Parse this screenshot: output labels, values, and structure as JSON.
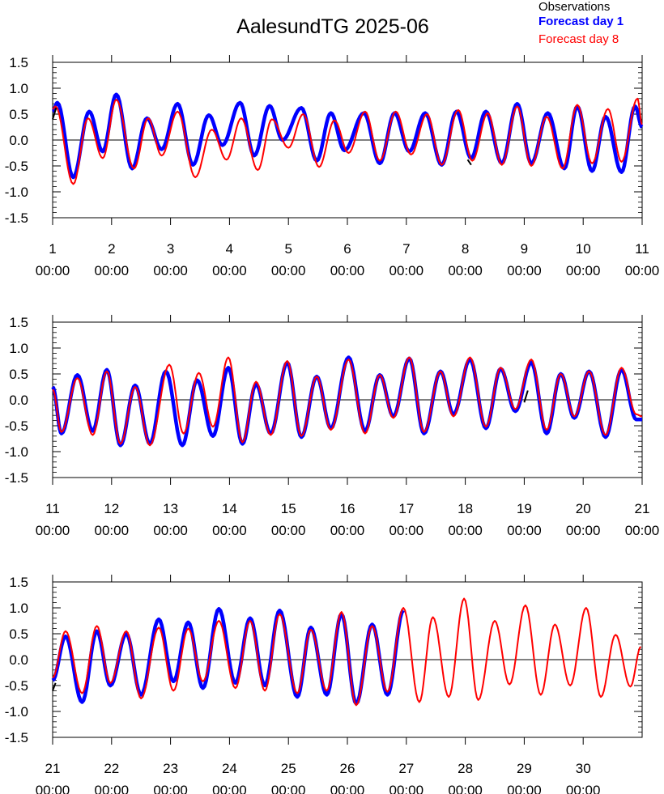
{
  "title": "AalesundTG 2025-06",
  "legend": [
    {
      "label": "Observations",
      "color": "#000000",
      "bold": false
    },
    {
      "label": "Forecast day 1",
      "color": "#0000ff",
      "bold": true
    },
    {
      "label": "Forecast day 8",
      "color": "#ff0000",
      "bold": false
    }
  ],
  "chart_data": {
    "type": "line",
    "title": "AalesundTG 2025-06",
    "units": "days of June 2025 (x), sea level (y)",
    "ylim": [
      -1.5,
      1.5
    ],
    "yticks": [
      "1.5",
      "1.0",
      "0.5",
      "0.0",
      "-0.5",
      "-1.0",
      "-1.5"
    ],
    "grid": false,
    "legend_position": "top-right",
    "series_style": {
      "Observations": {
        "color": "#000000"
      },
      "Forecast day 1": {
        "color": "#0000ff"
      },
      "Forecast day 8": {
        "color": "#ff0000"
      }
    },
    "panels": [
      {
        "xrange": [
          1,
          11
        ],
        "xtick_days": [
          "1",
          "2",
          "3",
          "4",
          "5",
          "6",
          "7",
          "8",
          "9",
          "10",
          "11"
        ],
        "xtick_time": "00:00",
        "obs_segments": [
          {
            "x": [
              1.0,
              1.06
            ],
            "y": [
              0.4,
              0.62
            ]
          },
          {
            "x": [
              8.04,
              8.1
            ],
            "y": [
              -0.38,
              -0.48
            ]
          }
        ],
        "fc1_extrema": [
          [
            1.0,
            0.55
          ],
          [
            1.08,
            0.72
          ],
          [
            1.35,
            -0.72
          ],
          [
            1.62,
            0.55
          ],
          [
            1.85,
            -0.22
          ],
          [
            2.08,
            0.88
          ],
          [
            2.35,
            -0.55
          ],
          [
            2.6,
            0.42
          ],
          [
            2.85,
            -0.18
          ],
          [
            3.12,
            0.7
          ],
          [
            3.38,
            -0.48
          ],
          [
            3.65,
            0.48
          ],
          [
            3.88,
            -0.1
          ],
          [
            4.18,
            0.72
          ],
          [
            4.42,
            -0.3
          ],
          [
            4.68,
            0.66
          ],
          [
            4.9,
            0.0
          ],
          [
            5.22,
            0.62
          ],
          [
            5.48,
            -0.4
          ],
          [
            5.72,
            0.52
          ],
          [
            5.95,
            -0.2
          ],
          [
            6.28,
            0.52
          ],
          [
            6.55,
            -0.45
          ],
          [
            6.8,
            0.52
          ],
          [
            7.05,
            -0.22
          ],
          [
            7.32,
            0.52
          ],
          [
            7.6,
            -0.48
          ],
          [
            7.85,
            0.55
          ],
          [
            8.1,
            -0.35
          ],
          [
            8.35,
            0.55
          ],
          [
            8.62,
            -0.45
          ],
          [
            8.88,
            0.7
          ],
          [
            9.12,
            -0.45
          ],
          [
            9.4,
            0.52
          ],
          [
            9.68,
            -0.55
          ],
          [
            9.9,
            0.65
          ],
          [
            10.15,
            -0.6
          ],
          [
            10.38,
            0.45
          ],
          [
            10.65,
            -0.62
          ],
          [
            10.88,
            0.65
          ],
          [
            11.0,
            0.25
          ]
        ],
        "fc8_extrema": [
          [
            1.0,
            0.6
          ],
          [
            1.05,
            0.65
          ],
          [
            1.35,
            -0.85
          ],
          [
            1.6,
            0.42
          ],
          [
            1.85,
            -0.35
          ],
          [
            2.08,
            0.78
          ],
          [
            2.38,
            -0.55
          ],
          [
            2.62,
            0.42
          ],
          [
            2.85,
            -0.3
          ],
          [
            3.12,
            0.55
          ],
          [
            3.42,
            -0.72
          ],
          [
            3.7,
            0.2
          ],
          [
            3.95,
            -0.38
          ],
          [
            4.2,
            0.42
          ],
          [
            4.48,
            -0.58
          ],
          [
            4.72,
            0.4
          ],
          [
            5.0,
            -0.15
          ],
          [
            5.25,
            0.5
          ],
          [
            5.52,
            -0.52
          ],
          [
            5.78,
            0.38
          ],
          [
            6.02,
            -0.25
          ],
          [
            6.3,
            0.55
          ],
          [
            6.55,
            -0.4
          ],
          [
            6.82,
            0.55
          ],
          [
            7.08,
            -0.28
          ],
          [
            7.35,
            0.5
          ],
          [
            7.6,
            -0.48
          ],
          [
            7.88,
            0.58
          ],
          [
            8.12,
            -0.4
          ],
          [
            8.38,
            0.52
          ],
          [
            8.62,
            -0.48
          ],
          [
            8.88,
            0.65
          ],
          [
            9.12,
            -0.5
          ],
          [
            9.38,
            0.45
          ],
          [
            9.65,
            -0.55
          ],
          [
            9.9,
            0.68
          ],
          [
            10.15,
            -0.45
          ],
          [
            10.42,
            0.6
          ],
          [
            10.65,
            -0.42
          ],
          [
            10.92,
            0.8
          ],
          [
            11.0,
            0.3
          ]
        ]
      },
      {
        "xrange": [
          11,
          21
        ],
        "xtick_days": [
          "11",
          "12",
          "13",
          "14",
          "15",
          "16",
          "17",
          "18",
          "19",
          "20",
          "21"
        ],
        "xtick_time": "00:00",
        "obs_segments": [
          {
            "x": [
              19.0,
              19.06
            ],
            "y": [
              -0.05,
              0.18
            ]
          }
        ],
        "fc1_extrema": [
          [
            11.0,
            0.25
          ],
          [
            11.15,
            -0.65
          ],
          [
            11.42,
            0.48
          ],
          [
            11.68,
            -0.6
          ],
          [
            11.92,
            0.58
          ],
          [
            12.15,
            -0.88
          ],
          [
            12.4,
            0.28
          ],
          [
            12.65,
            -0.85
          ],
          [
            12.92,
            0.55
          ],
          [
            13.2,
            -0.88
          ],
          [
            13.45,
            0.38
          ],
          [
            13.72,
            -0.7
          ],
          [
            13.98,
            0.62
          ],
          [
            14.22,
            -0.85
          ],
          [
            14.45,
            0.3
          ],
          [
            14.7,
            -0.65
          ],
          [
            14.98,
            0.72
          ],
          [
            15.22,
            -0.72
          ],
          [
            15.48,
            0.45
          ],
          [
            15.72,
            -0.55
          ],
          [
            16.02,
            0.82
          ],
          [
            16.3,
            -0.6
          ],
          [
            16.55,
            0.48
          ],
          [
            16.78,
            -0.32
          ],
          [
            17.05,
            0.8
          ],
          [
            17.3,
            -0.65
          ],
          [
            17.58,
            0.55
          ],
          [
            17.8,
            -0.28
          ],
          [
            18.08,
            0.78
          ],
          [
            18.35,
            -0.55
          ],
          [
            18.6,
            0.6
          ],
          [
            18.85,
            -0.22
          ],
          [
            19.12,
            0.72
          ],
          [
            19.38,
            -0.65
          ],
          [
            19.62,
            0.5
          ],
          [
            19.85,
            -0.35
          ],
          [
            20.1,
            0.55
          ],
          [
            20.38,
            -0.72
          ],
          [
            20.65,
            0.58
          ],
          [
            20.9,
            -0.38
          ],
          [
            21.0,
            -0.38
          ]
        ],
        "fc8_extrema": [
          [
            11.0,
            0.2
          ],
          [
            11.15,
            -0.62
          ],
          [
            11.42,
            0.42
          ],
          [
            11.68,
            -0.68
          ],
          [
            11.92,
            0.55
          ],
          [
            12.15,
            -0.85
          ],
          [
            12.4,
            0.25
          ],
          [
            12.65,
            -0.88
          ],
          [
            12.98,
            0.68
          ],
          [
            13.22,
            -0.65
          ],
          [
            13.48,
            0.52
          ],
          [
            13.72,
            -0.52
          ],
          [
            13.98,
            0.82
          ],
          [
            14.22,
            -0.82
          ],
          [
            14.45,
            0.35
          ],
          [
            14.7,
            -0.68
          ],
          [
            14.98,
            0.75
          ],
          [
            15.22,
            -0.7
          ],
          [
            15.48,
            0.45
          ],
          [
            15.72,
            -0.58
          ],
          [
            16.02,
            0.78
          ],
          [
            16.3,
            -0.65
          ],
          [
            16.55,
            0.48
          ],
          [
            16.78,
            -0.35
          ],
          [
            17.05,
            0.82
          ],
          [
            17.3,
            -0.62
          ],
          [
            17.58,
            0.55
          ],
          [
            17.8,
            -0.32
          ],
          [
            18.08,
            0.82
          ],
          [
            18.35,
            -0.52
          ],
          [
            18.6,
            0.62
          ],
          [
            18.85,
            -0.18
          ],
          [
            19.12,
            0.78
          ],
          [
            19.38,
            -0.58
          ],
          [
            19.62,
            0.5
          ],
          [
            19.85,
            -0.32
          ],
          [
            20.1,
            0.55
          ],
          [
            20.38,
            -0.68
          ],
          [
            20.65,
            0.62
          ],
          [
            20.9,
            -0.28
          ],
          [
            21.0,
            -0.32
          ]
        ]
      },
      {
        "xrange": [
          21,
          31
        ],
        "xtick_days": [
          "21",
          "22",
          "23",
          "24",
          "25",
          "26",
          "27",
          "28",
          "29",
          "30"
        ],
        "xtick_time": "00:00",
        "obs_segments": [
          {
            "x": [
              21.0,
              21.05
            ],
            "y": [
              -0.6,
              -0.45
            ]
          }
        ],
        "fc1_extrema": [
          [
            21.0,
            -0.4
          ],
          [
            21.22,
            0.45
          ],
          [
            21.5,
            -0.82
          ],
          [
            21.75,
            0.55
          ],
          [
            21.98,
            -0.5
          ],
          [
            22.25,
            0.5
          ],
          [
            22.5,
            -0.68
          ],
          [
            22.8,
            0.78
          ],
          [
            23.05,
            -0.42
          ],
          [
            23.3,
            0.72
          ],
          [
            23.55,
            -0.55
          ],
          [
            23.82,
            0.98
          ],
          [
            24.1,
            -0.45
          ],
          [
            24.35,
            0.8
          ],
          [
            24.6,
            -0.5
          ],
          [
            24.85,
            0.95
          ],
          [
            25.15,
            -0.72
          ],
          [
            25.38,
            0.62
          ],
          [
            25.65,
            -0.68
          ],
          [
            25.9,
            0.88
          ],
          [
            26.15,
            -0.85
          ],
          [
            26.42,
            0.68
          ],
          [
            26.68,
            -0.68
          ],
          [
            26.95,
            0.95
          ]
        ],
        "fc8_extrema": [
          [
            21.0,
            -0.35
          ],
          [
            21.22,
            0.55
          ],
          [
            21.5,
            -0.65
          ],
          [
            21.75,
            0.65
          ],
          [
            21.98,
            -0.45
          ],
          [
            22.25,
            0.55
          ],
          [
            22.5,
            -0.75
          ],
          [
            22.8,
            0.62
          ],
          [
            23.05,
            -0.6
          ],
          [
            23.3,
            0.6
          ],
          [
            23.55,
            -0.42
          ],
          [
            23.82,
            0.75
          ],
          [
            24.1,
            -0.55
          ],
          [
            24.35,
            0.75
          ],
          [
            24.6,
            -0.6
          ],
          [
            24.85,
            0.88
          ],
          [
            25.15,
            -0.65
          ],
          [
            25.38,
            0.58
          ],
          [
            25.65,
            -0.6
          ],
          [
            25.9,
            0.92
          ],
          [
            26.15,
            -0.88
          ],
          [
            26.42,
            0.65
          ],
          [
            26.68,
            -0.62
          ],
          [
            26.95,
            1.0
          ],
          [
            27.22,
            -0.82
          ],
          [
            27.45,
            0.82
          ],
          [
            27.72,
            -0.72
          ],
          [
            27.98,
            1.18
          ],
          [
            28.22,
            -0.78
          ],
          [
            28.5,
            0.75
          ],
          [
            28.75,
            -0.48
          ],
          [
            29.02,
            1.05
          ],
          [
            29.28,
            -0.68
          ],
          [
            29.52,
            0.68
          ],
          [
            29.78,
            -0.5
          ],
          [
            30.05,
            1.0
          ],
          [
            30.3,
            -0.72
          ],
          [
            30.55,
            0.48
          ],
          [
            30.8,
            -0.52
          ],
          [
            30.98,
            0.25
          ]
        ]
      }
    ]
  }
}
